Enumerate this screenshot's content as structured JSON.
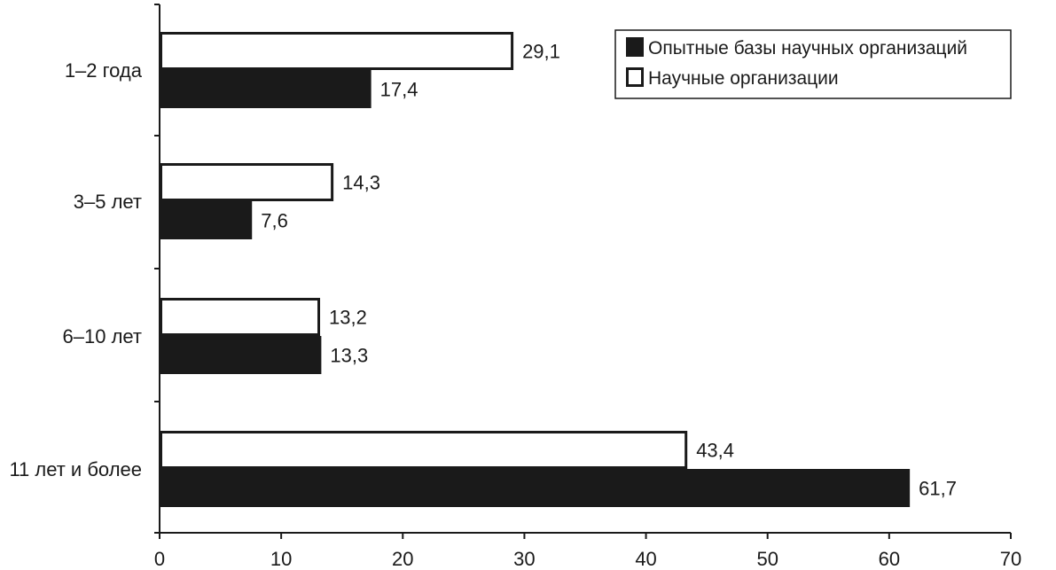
{
  "chart_data": {
    "type": "bar",
    "orientation": "horizontal",
    "categories": [
      "1–2 года",
      "3–5 лет",
      "6–10 лет",
      "11 лет и более"
    ],
    "series": [
      {
        "name": "Научные организации",
        "values": [
          29.1,
          14.3,
          13.2,
          43.4
        ],
        "value_labels": [
          "29,1",
          "14,3",
          "13,2",
          "43,4"
        ],
        "color": "#ffffff"
      },
      {
        "name": "Опытные базы научных организаций",
        "values": [
          17.4,
          7.6,
          13.3,
          61.7
        ],
        "value_labels": [
          "17,4",
          "7,6",
          "13,3",
          "61,7"
        ],
        "color": "#1a1a1a"
      }
    ],
    "legend_order": [
      1,
      0
    ],
    "xlim": [
      0,
      70
    ],
    "xticks": [
      0,
      10,
      20,
      30,
      40,
      50,
      60,
      70
    ],
    "xtick_labels": [
      "0",
      "10",
      "20",
      "30",
      "40",
      "50",
      "60",
      "70"
    ],
    "grid": false,
    "legend_position": "top-right",
    "title": "",
    "xlabel": "",
    "ylabel": ""
  }
}
